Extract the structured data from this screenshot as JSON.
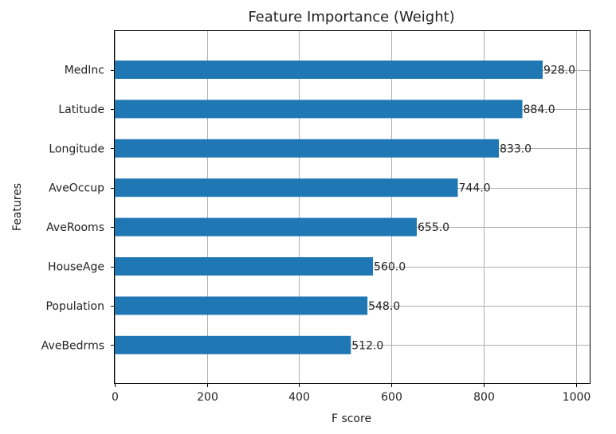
{
  "chart_data": {
    "type": "bar",
    "orientation": "horizontal",
    "title": "Feature Importance (Weight)",
    "xlabel": "F score",
    "ylabel": "Features",
    "xlim": [
      0,
      1030
    ],
    "xticks": [
      0,
      200,
      400,
      600,
      800,
      1000
    ],
    "grid": true,
    "bar_color": "#1f77b4",
    "categories": [
      "MedInc",
      "Latitude",
      "Longitude",
      "AveOccup",
      "AveRooms",
      "HouseAge",
      "Population",
      "AveBedrms"
    ],
    "values": [
      928,
      884,
      833,
      744,
      655,
      560,
      548,
      512
    ],
    "data_labels": [
      "928.0",
      "884.0",
      "833.0",
      "744.0",
      "655.0",
      "560.0",
      "548.0",
      "512.0"
    ]
  }
}
